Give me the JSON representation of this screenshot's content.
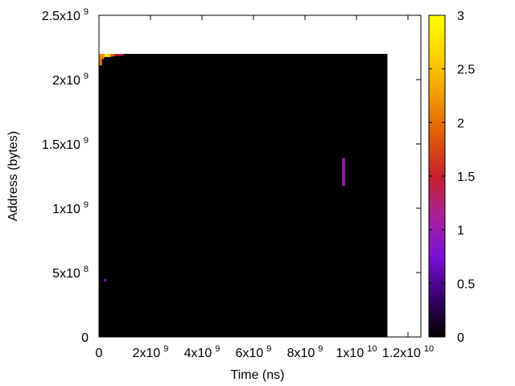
{
  "chart_data": {
    "type": "heatmap",
    "title": "",
    "xlabel": "Time (ns)",
    "ylabel": "Address (bytes)",
    "xlim": [
      0,
      12500000000
    ],
    "ylim": [
      0,
      2500000000
    ],
    "x_ticks": [
      {
        "value": 0,
        "base": "0",
        "exp": ""
      },
      {
        "value": 2000000000,
        "base": "2x10",
        "exp": "9"
      },
      {
        "value": 4000000000,
        "base": "4x10",
        "exp": "9"
      },
      {
        "value": 6000000000,
        "base": "6x10",
        "exp": "9"
      },
      {
        "value": 8000000000,
        "base": "8x10",
        "exp": "9"
      },
      {
        "value": 10000000000,
        "base": "1x10",
        "exp": "10"
      },
      {
        "value": 12000000000,
        "base": "1.2x10",
        "exp": "10"
      }
    ],
    "y_ticks": [
      {
        "value": 0,
        "base": "0",
        "exp": ""
      },
      {
        "value": 500000000,
        "base": "5x10",
        "exp": "8"
      },
      {
        "value": 1000000000,
        "base": "1x10",
        "exp": "9"
      },
      {
        "value": 1500000000,
        "base": "1.5x10",
        "exp": "9"
      },
      {
        "value": 2000000000,
        "base": "2x10",
        "exp": "9"
      },
      {
        "value": 2500000000,
        "base": "2.5x10",
        "exp": "9"
      }
    ],
    "colorbar": {
      "range": [
        0,
        3
      ],
      "ticks": [
        {
          "value": 0,
          "label": "0"
        },
        {
          "value": 0.5,
          "label": "0.5"
        },
        {
          "value": 1,
          "label": "1"
        },
        {
          "value": 1.5,
          "label": "1.5"
        },
        {
          "value": 2,
          "label": "2"
        },
        {
          "value": 2.5,
          "label": "2.5"
        },
        {
          "value": 3,
          "label": "3"
        }
      ],
      "palette": [
        "#000000",
        "#3a006e",
        "#7a10d8",
        "#a9209a",
        "#c81f2a",
        "#e05a08",
        "#f39a00",
        "#ffd200",
        "#ffff00"
      ]
    },
    "background_value": 0,
    "data_extent": {
      "x": [
        0,
        11200000000
      ],
      "y": [
        0,
        2200000000
      ]
    },
    "hot_cells": [
      {
        "x0": 0,
        "x1": 200000000,
        "y0": 2160000000,
        "y1": 2200000000,
        "value": 2.2
      },
      {
        "x0": 0,
        "x1": 120000000,
        "y0": 2110000000,
        "y1": 2160000000,
        "value": 2.0
      },
      {
        "x0": 200000000,
        "x1": 450000000,
        "y0": 2175000000,
        "y1": 2200000000,
        "value": 2.6
      },
      {
        "x0": 450000000,
        "x1": 620000000,
        "y0": 2180000000,
        "y1": 2200000000,
        "value": 1.9
      },
      {
        "x0": 620000000,
        "x1": 950000000,
        "y0": 2185000000,
        "y1": 2200000000,
        "value": 1.4
      },
      {
        "x0": 230000000,
        "x1": 330000000,
        "y0": 2185000000,
        "y1": 2200000000,
        "value": 2.9
      },
      {
        "x0": 9440000000,
        "x1": 9560000000,
        "y0": 1175000000,
        "y1": 1390000000,
        "value": 1.0
      },
      {
        "x0": 190000000,
        "x1": 290000000,
        "y0": 430000000,
        "y1": 450000000,
        "value": 0.8
      }
    ]
  }
}
